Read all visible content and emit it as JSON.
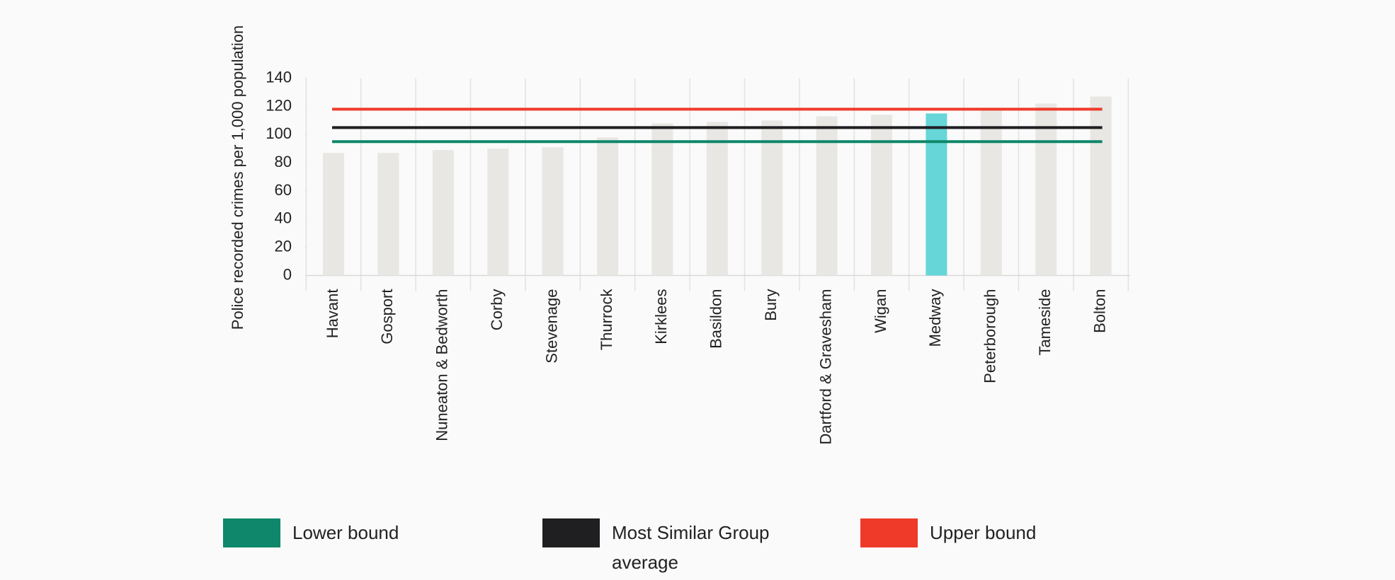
{
  "chart_data": {
    "type": "bar",
    "y_label": "Police recorded crimes per 1,000 population",
    "categories": [
      "Havant",
      "Gosport",
      "Nuneaton & Bedworth",
      "Corby",
      "Stevenage",
      "Thurrock",
      "Kirklees",
      "Basildon",
      "Bury",
      "Dartford & Gravesham",
      "Wigan",
      "Medway",
      "Peterborough",
      "Tameside",
      "Bolton"
    ],
    "values": [
      87,
      87,
      89,
      90,
      91,
      98,
      108,
      109,
      110,
      113,
      114,
      115,
      117,
      122,
      127
    ],
    "colors": [
      "#e8e7e3",
      "#e8e7e3",
      "#e8e7e3",
      "#e8e7e3",
      "#e8e7e3",
      "#e8e7e3",
      "#e8e7e3",
      "#e8e7e3",
      "#e8e7e3",
      "#e8e7e3",
      "#e8e7e3",
      "#66d6d8",
      "#e8e7e3",
      "#e8e7e3",
      "#e8e7e3"
    ],
    "reference_lines": [
      {
        "name": "Lower bound",
        "color": "#0e876a",
        "value": 95
      },
      {
        "name": "Most Similar Group average",
        "color": "#1f1f22",
        "value": 105
      },
      {
        "name": "Upper bound",
        "color": "#ef3a2a",
        "value": 118
      }
    ],
    "ylim": [
      0,
      140
    ],
    "yticks": [
      0,
      20,
      40,
      60,
      80,
      100,
      120,
      140
    ],
    "grid": true
  }
}
